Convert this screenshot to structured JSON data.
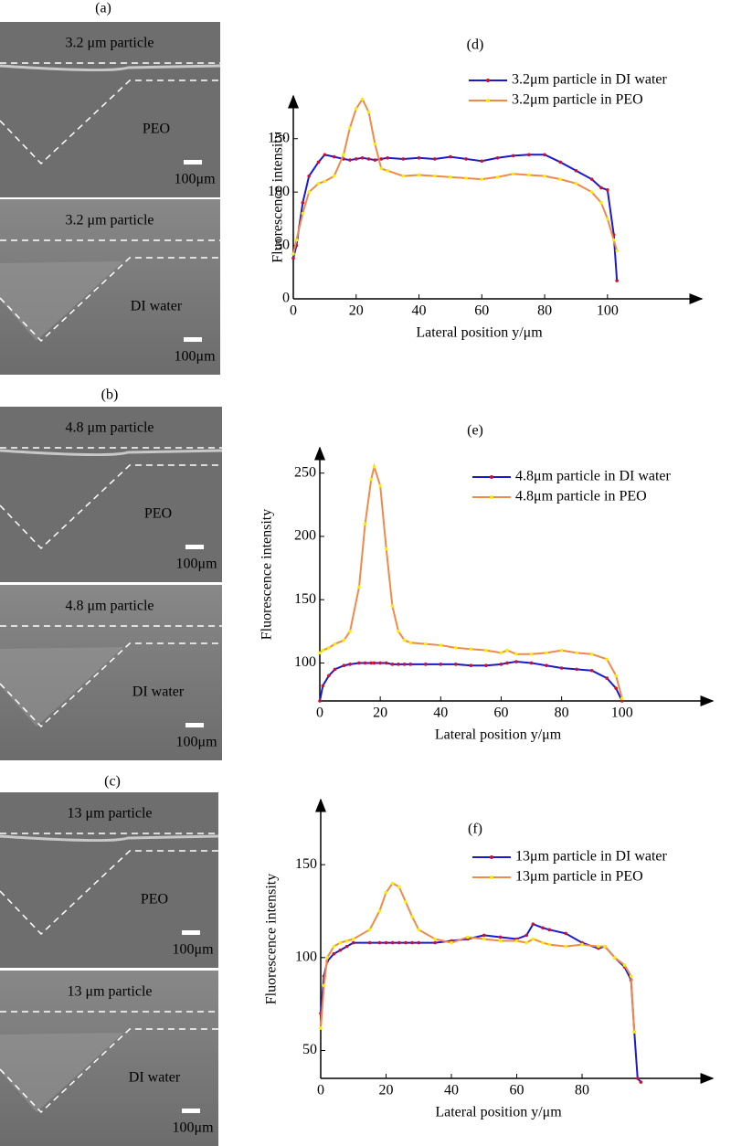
{
  "micrographs": [
    {
      "label": "(a)",
      "images": [
        {
          "particle": "3.2 μm particle",
          "medium": "PEO",
          "scale_bar": "100μm",
          "text_color": "#f2f200"
        },
        {
          "particle": "3.2 μm particle",
          "medium": "DI water",
          "scale_bar": "100μm",
          "text_color": "#ee2020"
        }
      ]
    },
    {
      "label": "(b)",
      "images": [
        {
          "particle": "4.8 μm particle",
          "medium": "PEO",
          "scale_bar": "100μm",
          "text_color": "#f2f200"
        },
        {
          "particle": "4.8 μm particle",
          "medium": "DI water",
          "scale_bar": "100μm",
          "text_color": "#ee2020"
        }
      ]
    },
    {
      "label": "(c)",
      "images": [
        {
          "particle": "13 μm particle",
          "medium": "PEO",
          "scale_bar": "100μm",
          "text_color": "#f2f200"
        },
        {
          "particle": "13 μm particle",
          "medium": "DI water",
          "scale_bar": "100μm",
          "text_color": "#ee2020"
        }
      ]
    }
  ],
  "chart_data": [
    {
      "type": "line",
      "title": "(d)",
      "x_label": "Lateral position y/μm",
      "y_label": "Fluorescence intensity",
      "legend": "upper right",
      "xlim": [
        0,
        130
      ],
      "xticks": [
        0,
        20,
        40,
        60,
        80,
        100
      ],
      "ylim": [
        0,
        190
      ],
      "yticks": [
        0,
        50,
        100,
        150
      ],
      "x": [
        0,
        1,
        3,
        5,
        8,
        10,
        13,
        16,
        18,
        20,
        22,
        24,
        26,
        28,
        30,
        35,
        40,
        45,
        50,
        55,
        60,
        65,
        70,
        75,
        80,
        85,
        90,
        95,
        98,
        100,
        102,
        103
      ],
      "series": [
        {
          "name": "3.2μm particle in DI water",
          "color": "#1a1acc",
          "marker_color": "#cc1030",
          "values": [
            38,
            50,
            90,
            115,
            128,
            135,
            133,
            131,
            130,
            131,
            132,
            131,
            130,
            131,
            132,
            131,
            132,
            131,
            133,
            131,
            129,
            132,
            134,
            135,
            135,
            128,
            120,
            112,
            104,
            102,
            60,
            17
          ]
        },
        {
          "name": "3.2μm particle in PEO",
          "color": "#f08a4b",
          "marker_color": "#f2f200",
          "values": [
            42,
            55,
            80,
            100,
            108,
            110,
            115,
            135,
            160,
            178,
            187,
            175,
            145,
            122,
            120,
            115,
            116,
            115,
            114,
            113,
            112,
            114,
            117,
            116,
            115,
            112,
            108,
            100,
            90,
            75,
            55,
            45
          ]
        }
      ]
    },
    {
      "type": "line",
      "title": "(e)",
      "x_label": "Lateral position y/μm",
      "y_label": "Fluorescence intensity",
      "legend": "upper right",
      "xlim": [
        0,
        130
      ],
      "xticks": [
        0,
        20,
        40,
        60,
        80,
        100
      ],
      "ylim": [
        70,
        270
      ],
      "yticks": [
        100,
        150,
        200,
        250
      ],
      "x": [
        0,
        1,
        3,
        5,
        8,
        10,
        13,
        15,
        17,
        18,
        20,
        22,
        24,
        26,
        28,
        30,
        35,
        40,
        45,
        50,
        55,
        60,
        62,
        65,
        70,
        75,
        80,
        85,
        90,
        95,
        98,
        100
      ],
      "series": [
        {
          "name": "4.8μm particle in DI water",
          "color": "#1a1acc",
          "marker_color": "#cc1030",
          "values": [
            70,
            82,
            90,
            95,
            98,
            99,
            100,
            100,
            100,
            100,
            100,
            100,
            99,
            99,
            99,
            99,
            99,
            99,
            99,
            98,
            98,
            99,
            100,
            101,
            100,
            98,
            96,
            95,
            94,
            88,
            80,
            70
          ]
        },
        {
          "name": "4.8μm particle in PEO",
          "color": "#f08a4b",
          "marker_color": "#f2f200",
          "values": [
            108,
            110,
            112,
            115,
            118,
            125,
            160,
            210,
            245,
            255,
            240,
            190,
            145,
            125,
            118,
            116,
            115,
            114,
            112,
            111,
            110,
            108,
            110,
            107,
            107,
            108,
            110,
            108,
            107,
            103,
            90,
            72
          ]
        }
      ]
    },
    {
      "type": "line",
      "title": "(f)",
      "x_label": "Lateral position y/μm",
      "y_label": "Fluorescence intensity",
      "legend": "upper right",
      "xlim": [
        0,
        120
      ],
      "xticks": [
        0,
        20,
        40,
        60,
        80
      ],
      "ylim": [
        35,
        185
      ],
      "yticks": [
        50,
        100,
        150
      ],
      "x": [
        0,
        1,
        2,
        4,
        6,
        8,
        10,
        15,
        18,
        20,
        22,
        24,
        26,
        28,
        30,
        35,
        40,
        45,
        50,
        55,
        60,
        63,
        65,
        68,
        70,
        75,
        80,
        85,
        87,
        90,
        93,
        95,
        96,
        97,
        98
      ],
      "series": [
        {
          "name": "13μm particle in DI water",
          "color": "#1a1acc",
          "marker_color": "#cc1030",
          "values": [
            70,
            90,
            98,
            102,
            104,
            106,
            108,
            108,
            108,
            108,
            108,
            108,
            108,
            108,
            108,
            108,
            109,
            110,
            112,
            111,
            110,
            112,
            118,
            116,
            115,
            113,
            108,
            105,
            106,
            100,
            95,
            88,
            60,
            35,
            33
          ]
        },
        {
          "name": "13μm particle in PEO",
          "color": "#f08a4b",
          "marker_color": "#f2f200",
          "values": [
            62,
            85,
            100,
            106,
            108,
            109,
            110,
            115,
            125,
            135,
            140,
            138,
            130,
            122,
            115,
            110,
            108,
            111,
            110,
            109,
            109,
            108,
            110,
            108,
            107,
            106,
            107,
            106,
            106,
            100,
            96,
            90,
            60,
            null,
            null
          ]
        }
      ]
    }
  ]
}
